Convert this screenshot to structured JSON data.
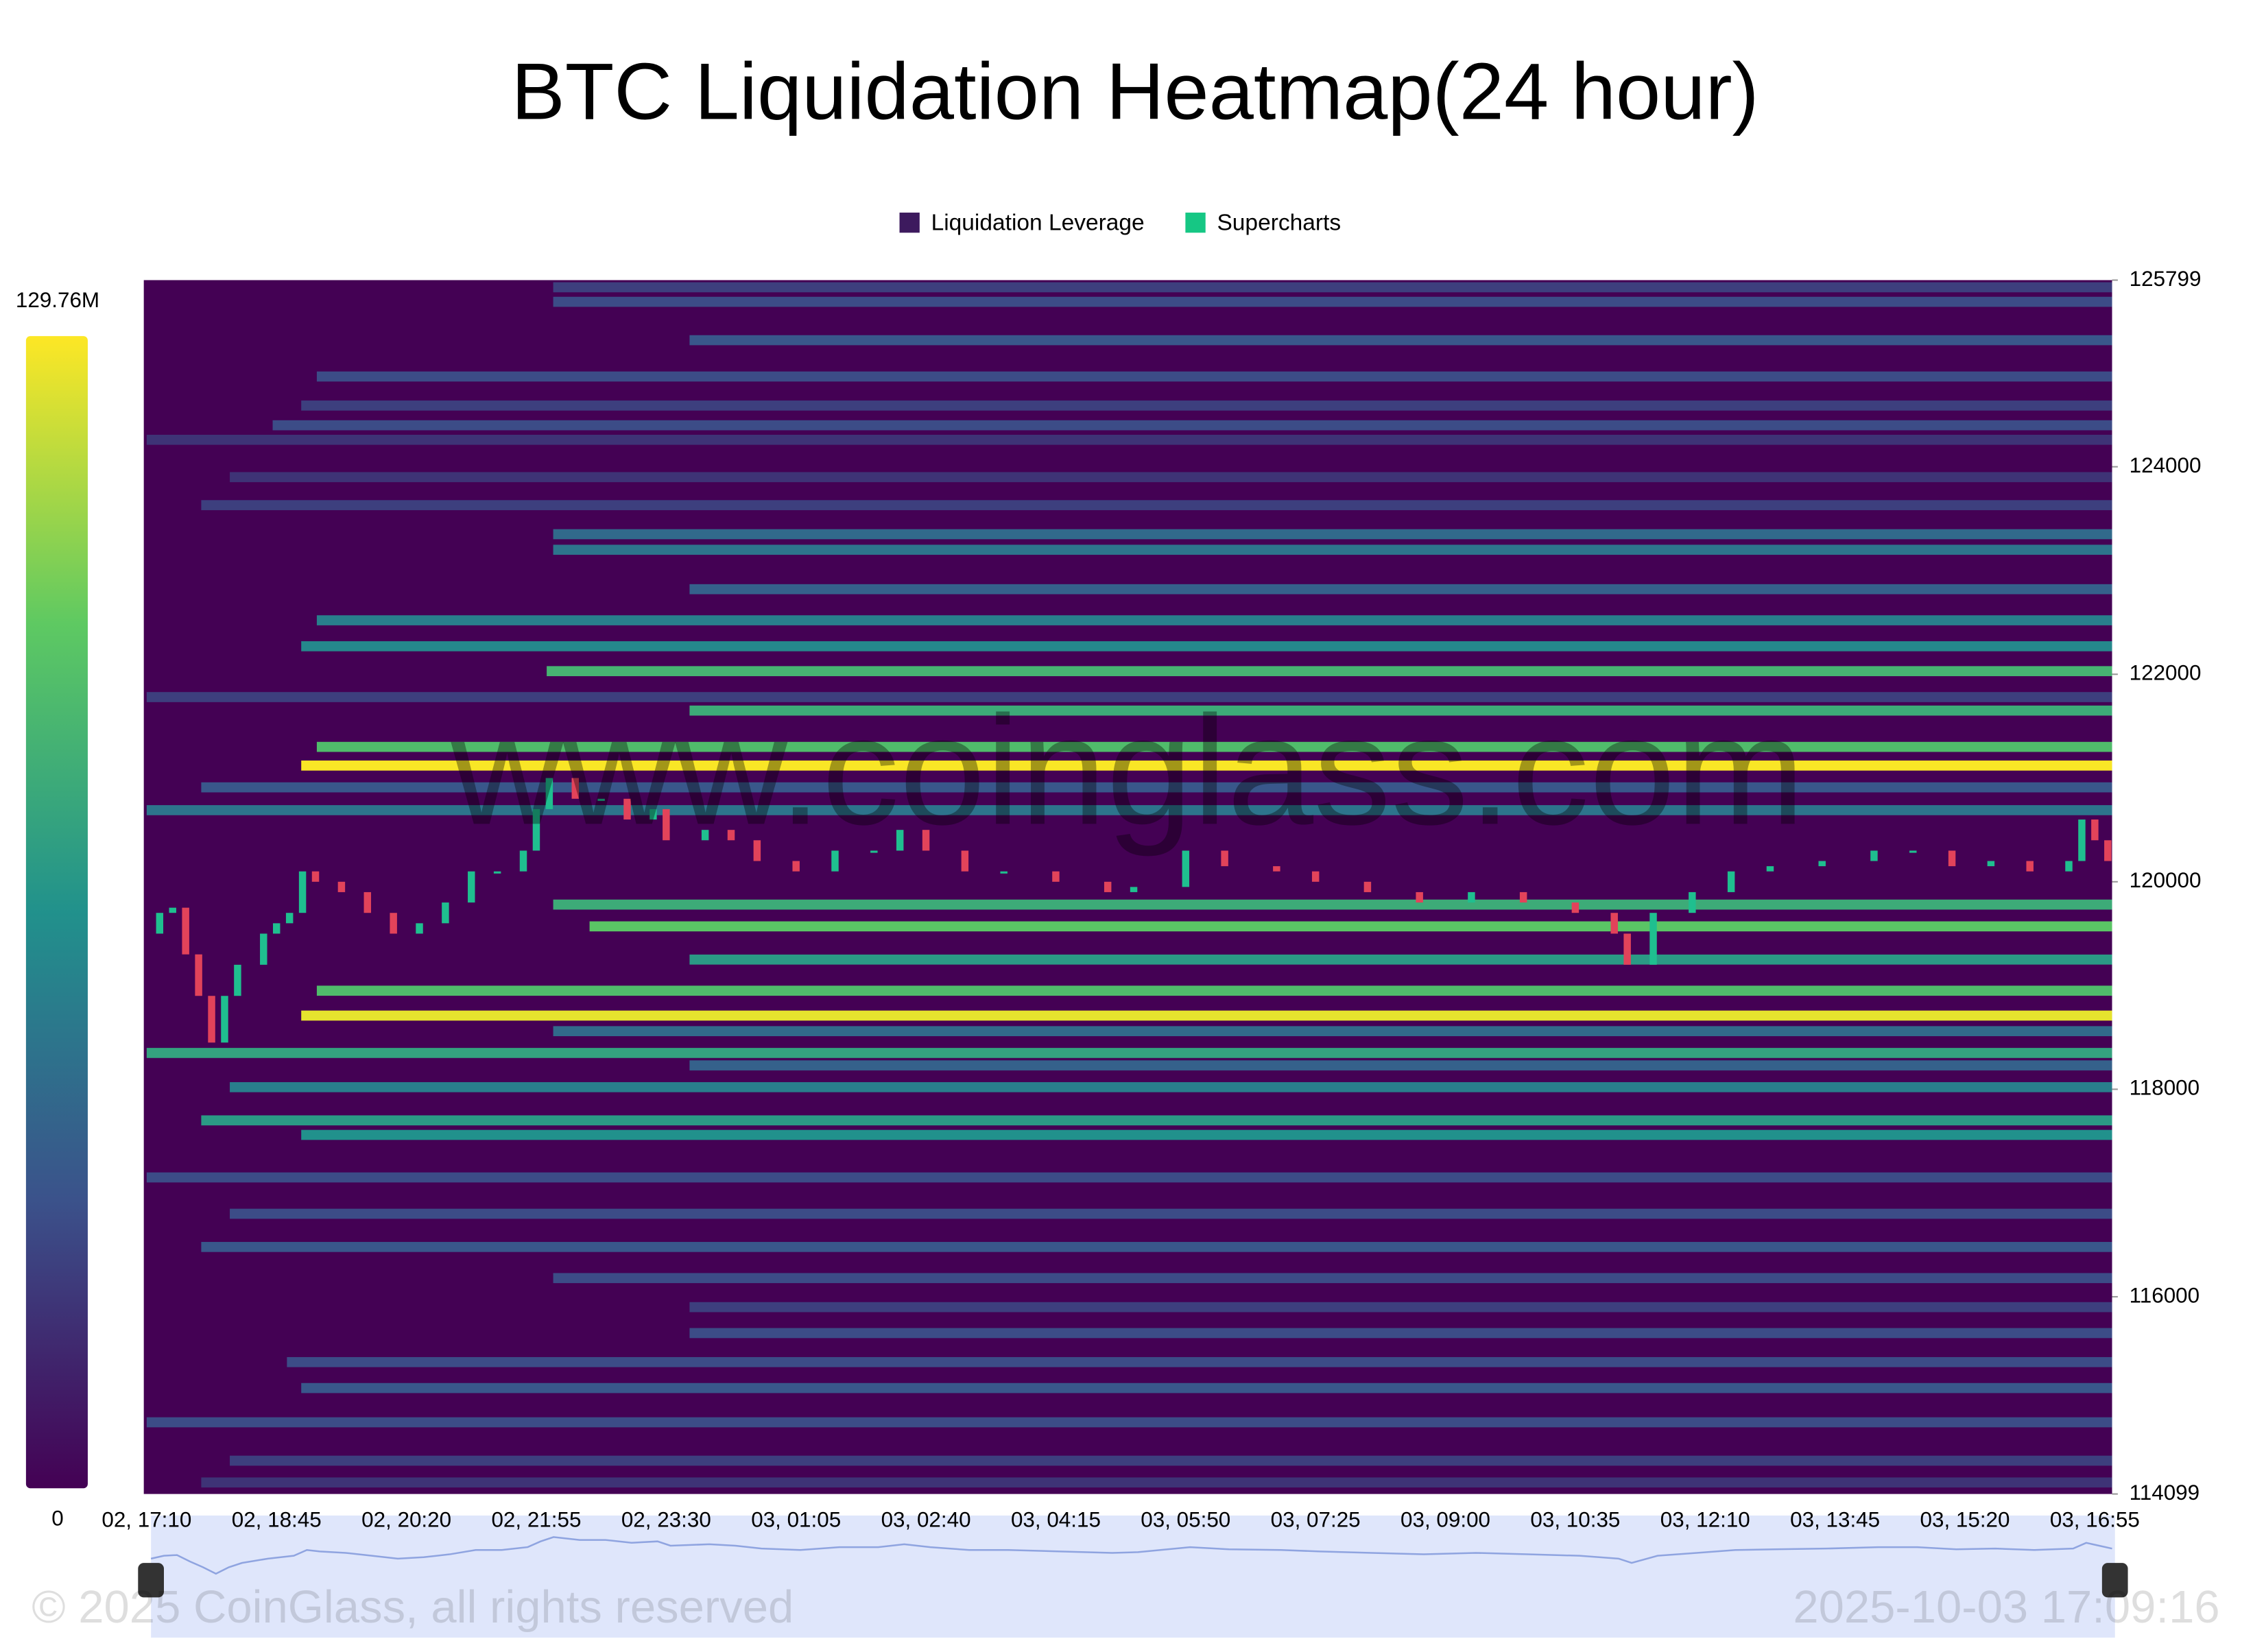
{
  "chart_data": {
    "type": "heatmap",
    "title": "BTC Liquidation Heatmap(24 hour)",
    "legend": [
      {
        "name": "Liquidation Leverage",
        "color": "#3d1a5e"
      },
      {
        "name": "Supercharts",
        "color": "#16c784"
      }
    ],
    "watermark": "www.coinglass.com",
    "copyright": "© 2025 CoinGlass, all rights reserved",
    "timestamp": "2025-10-03 17:09:16",
    "x": [
      "02, 17:10",
      "02, 18:45",
      "02, 20:20",
      "02, 21:55",
      "02, 23:30",
      "03, 01:05",
      "03, 02:40",
      "03, 04:15",
      "03, 05:50",
      "03, 07:25",
      "03, 09:00",
      "03, 10:35",
      "03, 12:10",
      "03, 13:45",
      "03, 15:20",
      "03, 16:55"
    ],
    "ylim": [
      114099,
      125799
    ],
    "yticks": [
      114099,
      116000,
      118000,
      120000,
      122000,
      124000,
      125799
    ],
    "colorscale": [
      "#440154",
      "#3b528b",
      "#21918c",
      "#5ec962",
      "#fde725"
    ],
    "clim": [
      0,
      129760000
    ],
    "cticks": [
      0,
      {
        "value": 129760000,
        "label": "129.76M"
      }
    ],
    "bands": {
      "price": [
        125730,
        125590,
        125220,
        124870,
        124590,
        124400,
        124260,
        123900,
        123630,
        123350,
        123200,
        122820,
        122520,
        122270,
        122030,
        121780,
        121650,
        121300,
        121120,
        120910,
        120690,
        119780,
        119570,
        119250,
        118950,
        118710,
        118560,
        118350,
        118230,
        118020,
        117700,
        117560,
        117150,
        116800,
        116480,
        116180,
        115900,
        115650,
        115370,
        115120,
        114790,
        114420,
        114210
      ],
      "start": [
        3.13,
        3.13,
        4.18,
        1.31,
        1.19,
        0.97,
        0,
        0.64,
        0.42,
        3.13,
        3.13,
        4.18,
        1.31,
        1.19,
        3.08,
        0,
        4.18,
        1.31,
        1.19,
        0.42,
        0,
        3.13,
        3.41,
        4.18,
        1.31,
        1.19,
        3.13,
        0,
        4.18,
        0.64,
        0.42,
        1.19,
        0,
        0.64,
        0.42,
        3.13,
        4.18,
        4.18,
        1.08,
        1.19,
        0,
        0.64,
        0.42
      ],
      "values": [
        25000000,
        30000000,
        35000000,
        30000000,
        25000000,
        30000000,
        20000000,
        20000000,
        25000000,
        45000000,
        50000000,
        40000000,
        55000000,
        60000000,
        85000000,
        25000000,
        80000000,
        90000000,
        129000000,
        35000000,
        50000000,
        80000000,
        95000000,
        70000000,
        90000000,
        125000000,
        45000000,
        75000000,
        40000000,
        55000000,
        70000000,
        65000000,
        30000000,
        30000000,
        35000000,
        30000000,
        25000000,
        30000000,
        30000000,
        35000000,
        30000000,
        25000000,
        20000000
      ]
    },
    "price": {
      "x": [
        0,
        0.1,
        0.2,
        0.3,
        0.4,
        0.5,
        0.6,
        0.7,
        0.9,
        1.0,
        1.1,
        1.2,
        1.3,
        1.5,
        1.7,
        1.9,
        2.1,
        2.3,
        2.5,
        2.7,
        2.9,
        3.0,
        3.1,
        3.3,
        3.5,
        3.7,
        3.9,
        4.0,
        4.3,
        4.5,
        4.7,
        5.0,
        5.3,
        5.6,
        5.8,
        6.0,
        6.3,
        6.6,
        7.0,
        7.4,
        7.6,
        8.0,
        8.3,
        8.7,
        9.0,
        9.4,
        9.8,
        10.2,
        10.6,
        11.0,
        11.3,
        11.4,
        11.6,
        11.9,
        12.2,
        12.5,
        12.9,
        13.3,
        13.6,
        13.9,
        14.2,
        14.5,
        14.8,
        14.9,
        15.0,
        15.1
      ],
      "values": [
        119500,
        119700,
        119750,
        119300,
        118900,
        118450,
        118900,
        119200,
        119500,
        119600,
        119700,
        120100,
        120000,
        119900,
        119700,
        119500,
        119600,
        119800,
        120100,
        120100,
        120300,
        120700,
        121000,
        120800,
        120800,
        120600,
        120700,
        120400,
        120500,
        120400,
        120200,
        120100,
        120300,
        120300,
        120500,
        120300,
        120100,
        120100,
        120000,
        119900,
        119950,
        120300,
        120150,
        120100,
        120000,
        119900,
        119800,
        119900,
        119800,
        119700,
        119500,
        119200,
        119700,
        119900,
        120100,
        120150,
        120200,
        120300,
        120300,
        120150,
        120200,
        120100,
        120200,
        120600,
        120400,
        120200
      ]
    }
  }
}
